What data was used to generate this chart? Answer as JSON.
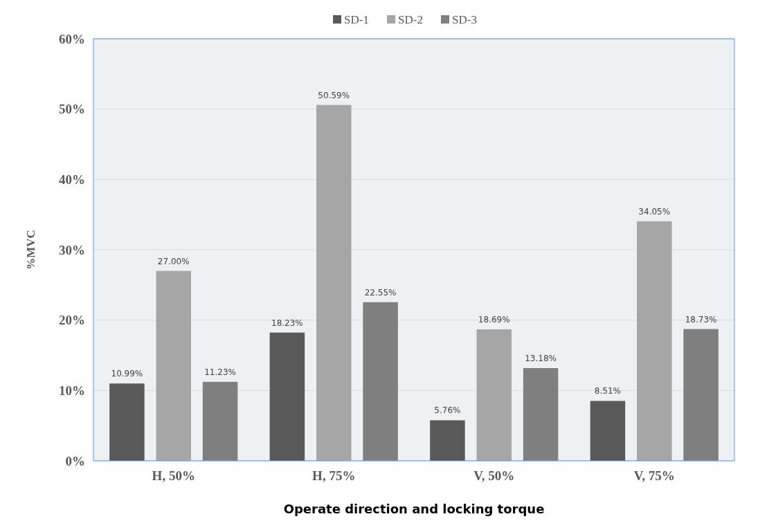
{
  "chart_data": {
    "type": "bar",
    "xlabel": "Operate direction and locking torque",
    "ylabel": "%MVC",
    "categories": [
      "H, 50%",
      "H, 75%",
      "V, 50%",
      "V, 75%"
    ],
    "series": [
      {
        "name": "SD-1",
        "color": "#595959",
        "values": [
          10.99,
          18.23,
          5.76,
          8.51
        ],
        "value_labels": [
          "10.99%",
          "18.23%",
          "5.76%",
          "8.51%"
        ]
      },
      {
        "name": "SD-2",
        "color": "#a6a6a6",
        "values": [
          27.0,
          50.59,
          18.69,
          34.05
        ],
        "value_labels": [
          "27.00%",
          "50.59%",
          "18.69%",
          "34.05%"
        ]
      },
      {
        "name": "SD-3",
        "color": "#7f7f7f",
        "values": [
          11.23,
          22.55,
          13.18,
          18.73
        ],
        "value_labels": [
          "11.23%",
          "22.55%",
          "13.18%",
          "18.73%"
        ]
      }
    ],
    "ylim": [
      0,
      60
    ],
    "yticks": [
      {
        "value": 0,
        "label": "0%"
      },
      {
        "value": 10,
        "label": "10%"
      },
      {
        "value": 20,
        "label": "20%"
      },
      {
        "value": 30,
        "label": "30%"
      },
      {
        "value": 40,
        "label": "40%"
      },
      {
        "value": 50,
        "label": "50%"
      },
      {
        "value": 60,
        "label": "60%"
      }
    ],
    "grid": "y",
    "legend": "top"
  }
}
